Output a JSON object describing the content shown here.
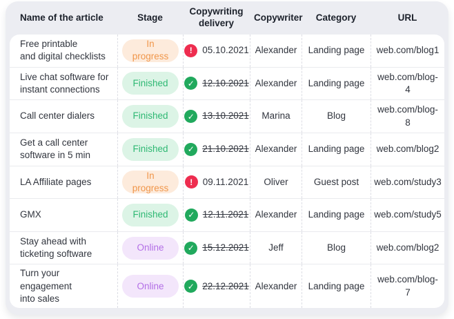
{
  "table": {
    "columns": [
      {
        "label": "Name of the article"
      },
      {
        "label": "Stage"
      },
      {
        "label": "Copywriting delivery"
      },
      {
        "label": "Copywriter"
      },
      {
        "label": "Category"
      },
      {
        "label": "URL"
      }
    ],
    "rows": [
      {
        "name": "Free printable\nand digital checklists",
        "stage": "In progress",
        "stage_type": "in-progress",
        "delivery_date": "05.10.2021",
        "delivery_status": "alert",
        "copywriter": "Alexander",
        "category": "Landing page",
        "url": "web.com/blog1"
      },
      {
        "name": "Live chat software for\ninstant connections",
        "stage": "Finished",
        "stage_type": "finished",
        "delivery_date": "12.10.2021",
        "delivery_status": "done",
        "copywriter": "Alexander",
        "category": "Landing page",
        "url": "web.com/blog-4"
      },
      {
        "name": "Call center dialers",
        "stage": "Finished",
        "stage_type": "finished",
        "delivery_date": "13.10.2021",
        "delivery_status": "done",
        "copywriter": "Marina",
        "category": "Blog",
        "url": "web.com/blog-8"
      },
      {
        "name": "Get a call center\nsoftware in 5 min",
        "stage": "Finished",
        "stage_type": "finished",
        "delivery_date": "21.10.2021",
        "delivery_status": "done",
        "copywriter": "Alexander",
        "category": "Landing page",
        "url": "web.com/blog2"
      },
      {
        "name": "LA Affiliate pages",
        "stage": "In progress",
        "stage_type": "in-progress",
        "delivery_date": "09.11.2021",
        "delivery_status": "alert",
        "copywriter": "Oliver",
        "category": "Guest post",
        "url": "web.com/study3"
      },
      {
        "name": "GMX",
        "stage": "Finished",
        "stage_type": "finished",
        "delivery_date": "12.11.2021",
        "delivery_status": "done",
        "copywriter": "Alexander",
        "category": "Landing page",
        "url": "web.com/study5"
      },
      {
        "name": "Stay ahead with\nticketing software",
        "stage": "Online",
        "stage_type": "online",
        "delivery_date": "15.12.2021",
        "delivery_status": "done",
        "copywriter": "Jeff",
        "category": "Blog",
        "url": "web.com/blog2"
      },
      {
        "name": "Turn your engagement\ninto sales",
        "stage": "Online",
        "stage_type": "online",
        "delivery_date": "22.12.2021",
        "delivery_status": "done",
        "copywriter": "Alexander",
        "category": "Landing page",
        "url": "web.com/blog-7"
      }
    ]
  },
  "icons": {
    "alert_glyph": "!",
    "done_glyph": "✓"
  },
  "colors": {
    "card_background": "#ECEDF2",
    "inprogress_bg": "#FDEBDC",
    "inprogress_fg": "#F0964A",
    "finished_bg": "#DCF4E6",
    "finished_fg": "#2EB873",
    "online_bg": "#F3E6FB",
    "online_fg": "#B36FE6",
    "alert_icon": "#EE2D4F",
    "done_icon": "#21A95D"
  }
}
